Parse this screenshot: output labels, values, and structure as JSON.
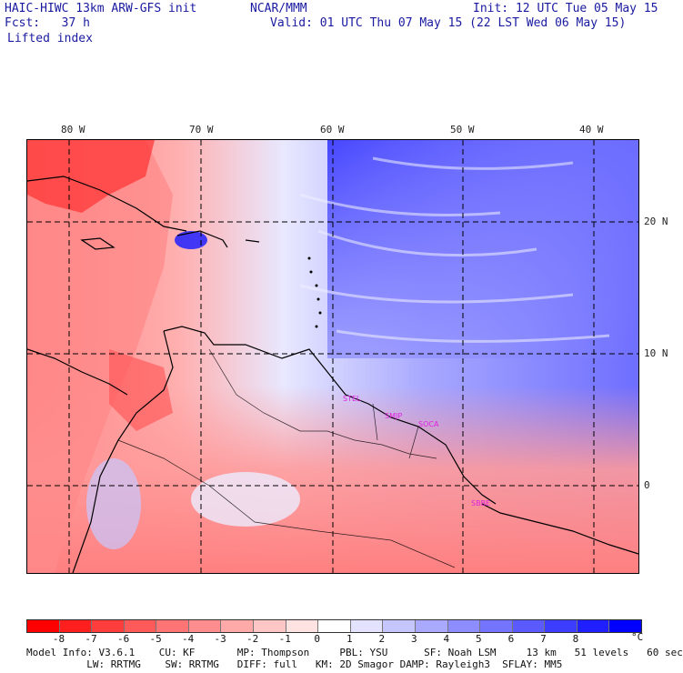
{
  "header": {
    "model": "HAIC-HIWC 13km ARW-GFS init",
    "center": "NCAR/MMM",
    "init": "Init: 12 UTC Tue 05 May 15",
    "fcst": "Fcst:   37 h",
    "valid": "Valid: 01 UTC Thu 07 May 15 (22 LST Wed 06 May 15)",
    "field": "Lifted index"
  },
  "map": {
    "lon_labels": [
      "80 W",
      "70 W",
      "60 W",
      "50 W",
      "40 W"
    ],
    "lat_labels": [
      "20 N",
      "10 N",
      "0"
    ],
    "stations": [
      "STEL",
      "SMJP",
      "SOCA",
      "SBBE"
    ]
  },
  "colorbar": {
    "unit": "°C",
    "ticks": [
      "-8",
      "-7",
      "-6",
      "-5",
      "-4",
      "-3",
      "-2",
      "-1",
      "0",
      "1",
      "2",
      "3",
      "4",
      "5",
      "6",
      "7",
      "8"
    ],
    "colors": [
      "#ff0000",
      "#ff1f1f",
      "#ff3d3d",
      "#ff5a5a",
      "#ff7474",
      "#ff8d8d",
      "#ffa9a9",
      "#ffc6c6",
      "#ffe3e3",
      "#ffffff",
      "#e3e3ff",
      "#c6c6ff",
      "#a9a9ff",
      "#8d8dff",
      "#7474ff",
      "#5a5aff",
      "#3d3dff",
      "#1f1fff",
      "#0000ff"
    ]
  },
  "footer": {
    "line1": "Model Info: V3.6.1    CU: KF       MP: Thompson     PBL: YSU      SF: Noah LSM     13 km   51 levels   60 sec",
    "line2": "          LW: RRTMG    SW: RRTMG   DIFF: full   KM: 2D Smagor DAMP: Rayleigh3  SFLAY: MM5"
  }
}
